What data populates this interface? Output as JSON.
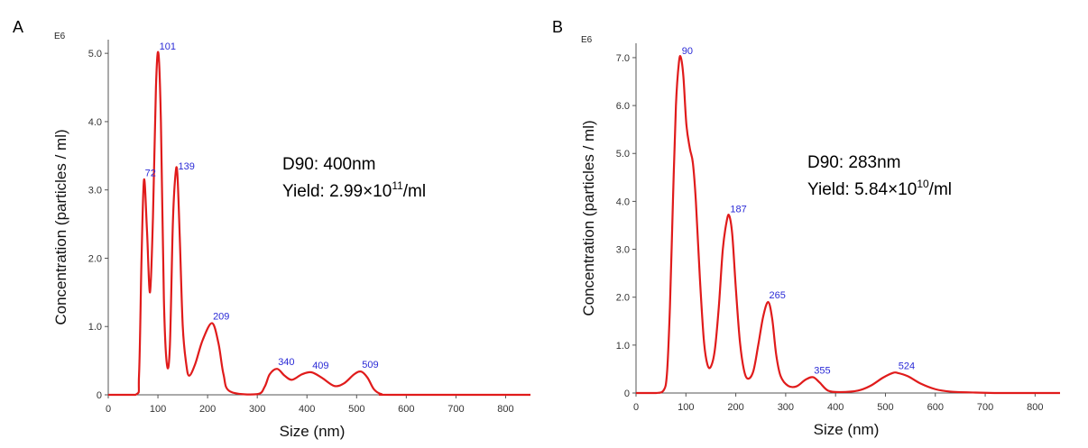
{
  "panels": [
    {
      "letter": "A",
      "scale_label": "E6",
      "xlabel": "Size (nm)",
      "ylabel": "Concentration (particles / ml)",
      "annotation": {
        "d90": "D90: 400nm",
        "yield_prefix": "Yield: 2.99×10",
        "yield_exp": "11",
        "yield_suffix": "/ml"
      }
    },
    {
      "letter": "B",
      "scale_label": "E6",
      "xlabel": "Size (nm)",
      "ylabel": "Concentration (particles / ml)",
      "annotation": {
        "d90": "D90: 283nm",
        "yield_prefix": "Yield: 5.84×10",
        "yield_exp": "10",
        "yield_suffix": "/ml"
      }
    }
  ],
  "chart_data": [
    {
      "type": "line",
      "title": "A",
      "xlabel": "Size (nm)",
      "ylabel": "Concentration (particles / ml)",
      "y_scale": "E6",
      "xlim": [
        0,
        850
      ],
      "ylim": [
        0,
        5.2
      ],
      "x_ticks": [
        0,
        100,
        200,
        300,
        400,
        500,
        600,
        700,
        800
      ],
      "y_ticks": [
        0,
        1.0,
        2.0,
        3.0,
        4.0,
        5.0
      ],
      "y_tick_labels": [
        "0",
        "1.0",
        "2.0",
        "3.0",
        "4.0",
        "5.0"
      ],
      "series": [
        {
          "name": "size distribution",
          "color": "#e01b1b",
          "points": [
            [
              0,
              0
            ],
            [
              55,
              0
            ],
            [
              62,
              0.3
            ],
            [
              67,
              2.0
            ],
            [
              72,
              3.15
            ],
            [
              78,
              2.4
            ],
            [
              84,
              1.5
            ],
            [
              90,
              2.6
            ],
            [
              96,
              4.5
            ],
            [
              101,
              5.0
            ],
            [
              106,
              4.0
            ],
            [
              112,
              1.4
            ],
            [
              118,
              0.45
            ],
            [
              124,
              0.7
            ],
            [
              130,
              2.5
            ],
            [
              135,
              3.2
            ],
            [
              139,
              3.25
            ],
            [
              144,
              2.3
            ],
            [
              150,
              1.0
            ],
            [
              157,
              0.45
            ],
            [
              163,
              0.28
            ],
            [
              175,
              0.45
            ],
            [
              190,
              0.8
            ],
            [
              209,
              1.05
            ],
            [
              222,
              0.75
            ],
            [
              232,
              0.3
            ],
            [
              245,
              0.05
            ],
            [
              300,
              0.01
            ],
            [
              315,
              0.12
            ],
            [
              325,
              0.3
            ],
            [
              340,
              0.38
            ],
            [
              355,
              0.28
            ],
            [
              370,
              0.22
            ],
            [
              390,
              0.3
            ],
            [
              409,
              0.33
            ],
            [
              430,
              0.25
            ],
            [
              455,
              0.13
            ],
            [
              475,
              0.17
            ],
            [
              495,
              0.3
            ],
            [
              509,
              0.34
            ],
            [
              522,
              0.25
            ],
            [
              535,
              0.08
            ],
            [
              550,
              0.01
            ],
            [
              575,
              0
            ],
            [
              850,
              0
            ]
          ]
        }
      ],
      "peak_labels": [
        {
          "x": 72,
          "y": 3.15,
          "label": "72"
        },
        {
          "x": 101,
          "y": 5.0,
          "label": "101"
        },
        {
          "x": 139,
          "y": 3.25,
          "label": "139"
        },
        {
          "x": 209,
          "y": 1.05,
          "label": "209"
        },
        {
          "x": 340,
          "y": 0.38,
          "label": "340"
        },
        {
          "x": 409,
          "y": 0.33,
          "label": "409"
        },
        {
          "x": 509,
          "y": 0.34,
          "label": "509"
        }
      ]
    },
    {
      "type": "line",
      "title": "B",
      "xlabel": "Size (nm)",
      "ylabel": "Concentration (particles / ml)",
      "y_scale": "E6",
      "xlim": [
        0,
        850
      ],
      "ylim": [
        0,
        7.3
      ],
      "x_ticks": [
        0,
        100,
        200,
        300,
        400,
        500,
        600,
        700,
        800
      ],
      "y_ticks": [
        0,
        1.0,
        2.0,
        3.0,
        4.0,
        5.0,
        6.0,
        7.0
      ],
      "y_tick_labels": [
        "0",
        "1.0",
        "2.0",
        "3.0",
        "4.0",
        "5.0",
        "6.0",
        "7.0"
      ],
      "series": [
        {
          "name": "size distribution",
          "color": "#e01b1b",
          "points": [
            [
              0,
              0
            ],
            [
              40,
              0
            ],
            [
              55,
              0.05
            ],
            [
              62,
              0.4
            ],
            [
              68,
              1.8
            ],
            [
              74,
              4.0
            ],
            [
              80,
              6.0
            ],
            [
              86,
              6.9
            ],
            [
              90,
              7.0
            ],
            [
              95,
              6.6
            ],
            [
              101,
              5.6
            ],
            [
              108,
              5.1
            ],
            [
              114,
              4.8
            ],
            [
              120,
              4.0
            ],
            [
              128,
              2.4
            ],
            [
              136,
              1.1
            ],
            [
              143,
              0.6
            ],
            [
              150,
              0.55
            ],
            [
              158,
              0.9
            ],
            [
              166,
              1.8
            ],
            [
              174,
              3.0
            ],
            [
              182,
              3.6
            ],
            [
              187,
              3.7
            ],
            [
              193,
              3.3
            ],
            [
              200,
              2.2
            ],
            [
              208,
              1.1
            ],
            [
              216,
              0.5
            ],
            [
              224,
              0.3
            ],
            [
              235,
              0.45
            ],
            [
              245,
              1.0
            ],
            [
              255,
              1.6
            ],
            [
              265,
              1.9
            ],
            [
              273,
              1.55
            ],
            [
              281,
              0.8
            ],
            [
              290,
              0.35
            ],
            [
              305,
              0.15
            ],
            [
              322,
              0.14
            ],
            [
              340,
              0.28
            ],
            [
              355,
              0.33
            ],
            [
              368,
              0.22
            ],
            [
              385,
              0.05
            ],
            [
              410,
              0.02
            ],
            [
              445,
              0.05
            ],
            [
              470,
              0.15
            ],
            [
              495,
              0.32
            ],
            [
              515,
              0.42
            ],
            [
              524,
              0.42
            ],
            [
              545,
              0.35
            ],
            [
              570,
              0.2
            ],
            [
              600,
              0.08
            ],
            [
              630,
              0.03
            ],
            [
              680,
              0.01
            ],
            [
              730,
              0
            ],
            [
              850,
              0
            ]
          ]
        }
      ],
      "peak_labels": [
        {
          "x": 90,
          "y": 7.0,
          "label": "90"
        },
        {
          "x": 187,
          "y": 3.7,
          "label": "187"
        },
        {
          "x": 265,
          "y": 1.9,
          "label": "265"
        },
        {
          "x": 355,
          "y": 0.33,
          "label": "355"
        },
        {
          "x": 524,
          "y": 0.42,
          "label": "524"
        }
      ]
    }
  ]
}
